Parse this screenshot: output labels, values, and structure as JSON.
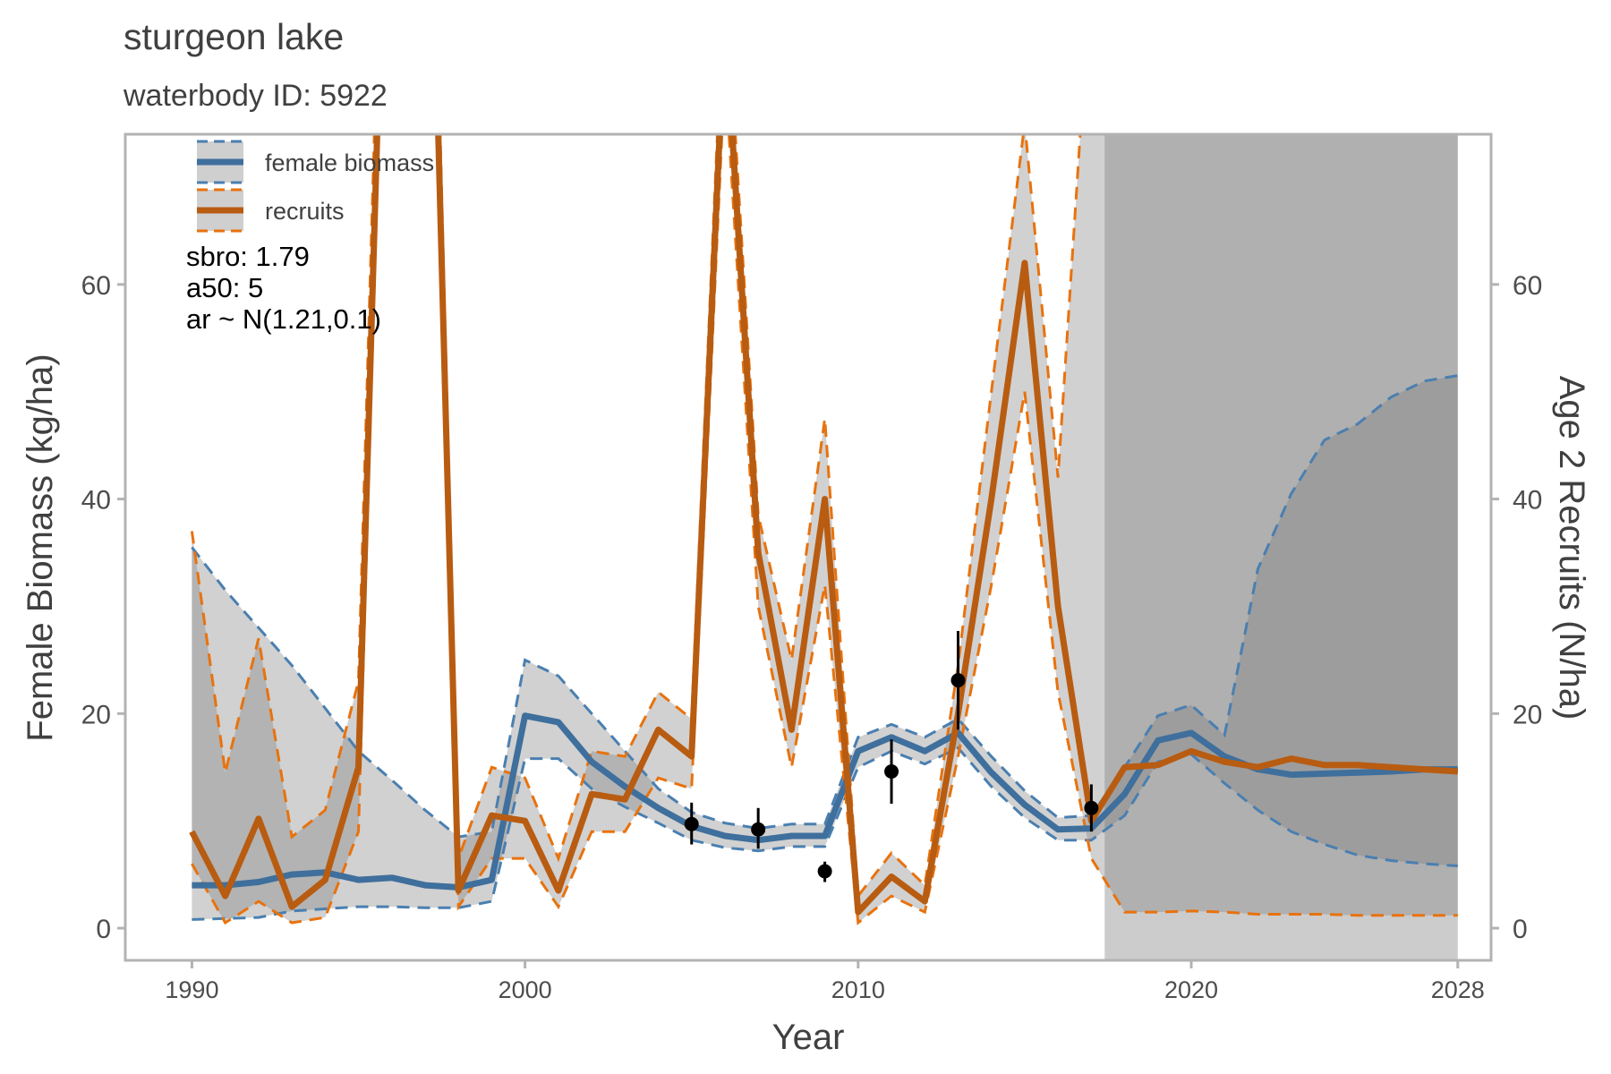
{
  "chart_data": {
    "type": "line",
    "title": "sturgeon lake",
    "subtitle": "waterbody ID: 5922",
    "xlabel": "Year",
    "ylabel": "Female Biomass (kg/ha)",
    "y2label": "Age 2 Recruits (N/ha)",
    "xlim": [
      1988,
      2029
    ],
    "ylim": [
      -3,
      74
    ],
    "x_ticks": [
      1990,
      2000,
      2010,
      2020,
      2028
    ],
    "x_tick_labels": [
      "1990",
      "2000",
      "2010",
      "2020",
      "2028"
    ],
    "y_ticks": [
      0,
      20,
      40,
      60
    ],
    "y_tick_labels": [
      "0",
      "20",
      "40",
      "60"
    ],
    "y2_ticks": [
      0,
      20,
      40,
      60
    ],
    "y2_tick_labels": [
      "0",
      "20",
      "40",
      "60"
    ],
    "grid": false,
    "legend_position": "top-left",
    "projection_start": 2017.4,
    "projection_end": 2028,
    "annotations": [
      "sbro: 1.79",
      "a50: 5",
      "ar ~ N(1.21,0.1)"
    ],
    "series": [
      {
        "name": "female biomass",
        "color": "#3f6f9c",
        "band_color": "#4a7fb0",
        "x": [
          1990,
          1991,
          1992,
          1993,
          1994,
          1995,
          1996,
          1997,
          1998,
          1999,
          2000,
          2001,
          2002,
          2003,
          2004,
          2005,
          2006,
          2007,
          2008,
          2009,
          2010,
          2011,
          2012,
          2013,
          2014,
          2015,
          2016,
          2017,
          2018,
          2019,
          2020,
          2021,
          2022,
          2023,
          2024,
          2025,
          2026,
          2027,
          2028
        ],
        "values": [
          4.0,
          4.0,
          4.3,
          5.0,
          5.2,
          4.5,
          4.7,
          4.0,
          3.8,
          4.5,
          19.8,
          19.2,
          15.5,
          13.2,
          11.2,
          9.5,
          8.6,
          8.2,
          8.6,
          8.6,
          16.5,
          17.8,
          16.5,
          18.2,
          14.5,
          11.5,
          9.2,
          9.3,
          12.5,
          17.5,
          18.2,
          16.0,
          14.8,
          14.3,
          14.4,
          14.5,
          14.6,
          14.8,
          14.8
        ],
        "lower": [
          0.8,
          0.9,
          1.0,
          1.6,
          1.8,
          2.0,
          2.0,
          1.9,
          1.9,
          2.5,
          15.8,
          15.8,
          13.0,
          11.3,
          9.8,
          8.2,
          7.5,
          7.2,
          7.6,
          7.6,
          15.0,
          16.5,
          15.3,
          16.8,
          13.2,
          10.3,
          8.2,
          8.2,
          10.5,
          15.5,
          16.2,
          13.5,
          11.0,
          9.0,
          7.8,
          6.8,
          6.3,
          6.0,
          5.8
        ],
        "upper": [
          35.5,
          31.5,
          28.0,
          24.5,
          20.5,
          16.5,
          13.8,
          11.0,
          8.5,
          9.0,
          25.0,
          23.5,
          20.0,
          16.5,
          13.0,
          10.8,
          9.8,
          9.3,
          9.7,
          9.7,
          17.8,
          19.0,
          17.8,
          19.5,
          16.0,
          12.8,
          10.3,
          10.5,
          15.0,
          19.8,
          20.8,
          18.0,
          33.5,
          40.5,
          45.5,
          47.0,
          49.5,
          51.0,
          51.5
        ]
      },
      {
        "name": "recruits",
        "color": "#b85c12",
        "band_color": "#e8720d",
        "x": [
          1990,
          1991,
          1992,
          1993,
          1994,
          1995,
          1996,
          1997,
          1998,
          1999,
          2000,
          2001,
          2002,
          2003,
          2004,
          2005,
          2006,
          2007,
          2008,
          2009,
          2010,
          2011,
          2012,
          2013,
          2014,
          2015,
          2016,
          2017,
          2018,
          2019,
          2020,
          2021,
          2022,
          2023,
          2024,
          2025,
          2026,
          2027,
          2028
        ],
        "values": [
          9.0,
          3.0,
          10.2,
          2.0,
          4.5,
          15.0,
          120.0,
          120.0,
          3.5,
          10.5,
          10.0,
          3.5,
          12.5,
          12.0,
          18.5,
          16.0,
          85.0,
          35.0,
          18.5,
          40.0,
          1.5,
          4.8,
          2.5,
          20.0,
          40.0,
          62.0,
          30.0,
          10.0,
          15.0,
          15.2,
          16.5,
          15.5,
          15.0,
          15.8,
          15.2,
          15.2,
          15.0,
          14.8,
          14.6
        ],
        "lower": [
          6.0,
          0.5,
          2.5,
          0.5,
          1.0,
          9.0,
          118.0,
          118.0,
          2.0,
          6.5,
          6.5,
          2.0,
          9.0,
          9.0,
          14.0,
          13.0,
          80.0,
          30.0,
          15.0,
          32.0,
          0.5,
          3.0,
          1.5,
          16.0,
          32.0,
          50.0,
          22.0,
          6.5,
          1.5,
          1.5,
          1.6,
          1.5,
          1.3,
          1.3,
          1.3,
          1.2,
          1.2,
          1.2,
          1.2
        ],
        "upper": [
          37.0,
          14.5,
          27.0,
          8.5,
          11.0,
          23.0,
          130.0,
          130.0,
          6.5,
          15.0,
          14.0,
          6.5,
          16.5,
          16.0,
          22.0,
          19.5,
          90.0,
          38.5,
          25.0,
          47.5,
          3.0,
          7.0,
          4.0,
          24.5,
          50.0,
          75.0,
          42.0,
          90.0,
          90.0,
          90.0,
          90.0,
          90.0,
          90.0,
          90.0,
          90.0,
          90.0,
          90.0,
          90.0,
          90.0
        ]
      }
    ],
    "observations": [
      {
        "x": 2005,
        "y": 9.7,
        "low": 7.8,
        "high": 11.7
      },
      {
        "x": 2007,
        "y": 9.2,
        "low": 7.4,
        "high": 11.2
      },
      {
        "x": 2009,
        "y": 5.3,
        "low": 4.3,
        "high": 6.2
      },
      {
        "x": 2011,
        "y": 14.6,
        "low": 11.6,
        "high": 17.6
      },
      {
        "x": 2013,
        "y": 23.1,
        "low": 18.5,
        "high": 27.7
      },
      {
        "x": 2017,
        "y": 11.2,
        "low": 9.0,
        "high": 13.4
      }
    ]
  }
}
